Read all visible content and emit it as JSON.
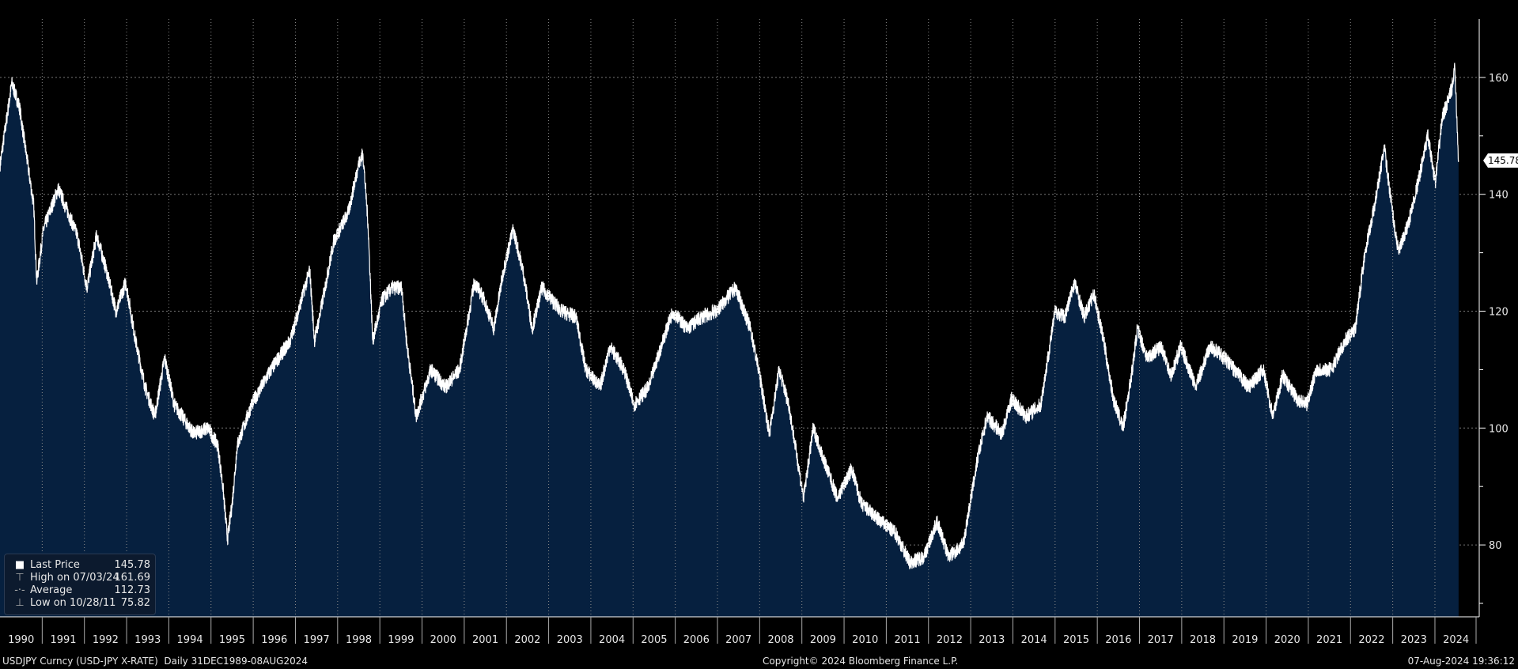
{
  "chart_data": {
    "type": "area",
    "title": "USDJPY Curncy (USD-JPY X-RATE)",
    "ylim": [
      67.7,
      170
    ],
    "xlim": [
      1990.0,
      2025.05
    ],
    "yticks": [
      "80",
      "100",
      "120",
      "140",
      "160"
    ],
    "ytick_values": [
      80,
      100,
      120,
      140,
      160
    ],
    "years": [
      "1990",
      "1991",
      "1992",
      "1993",
      "1994",
      "1995",
      "1996",
      "1997",
      "1998",
      "1999",
      "2000",
      "2001",
      "2002",
      "2003",
      "2004",
      "2005",
      "2006",
      "2007",
      "2008",
      "2009",
      "2010",
      "2011",
      "2012",
      "2013",
      "2014",
      "2015",
      "2016",
      "2017",
      "2018",
      "2019",
      "2020",
      "2021",
      "2022",
      "2023",
      "2024"
    ],
    "grid": true,
    "colors": {
      "fill": "#06203f",
      "line": "#ffffff",
      "background": "#000000"
    },
    "points": [
      [
        1990.0,
        145
      ],
      [
        1990.28,
        159
      ],
      [
        1990.46,
        155
      ],
      [
        1990.8,
        138
      ],
      [
        1990.87,
        125
      ],
      [
        1991.03,
        134
      ],
      [
        1991.38,
        141
      ],
      [
        1991.83,
        133
      ],
      [
        1992.06,
        124
      ],
      [
        1992.29,
        133
      ],
      [
        1992.52,
        127
      ],
      [
        1992.75,
        120
      ],
      [
        1992.98,
        125
      ],
      [
        1993.21,
        115
      ],
      [
        1993.44,
        107
      ],
      [
        1993.67,
        102
      ],
      [
        1993.9,
        112
      ],
      [
        1994.13,
        104
      ],
      [
        1994.59,
        99
      ],
      [
        1994.93,
        100
      ],
      [
        1995.16,
        97
      ],
      [
        1995.28,
        90
      ],
      [
        1995.39,
        81
      ],
      [
        1995.5,
        87
      ],
      [
        1995.62,
        97
      ],
      [
        1995.96,
        104
      ],
      [
        1996.42,
        110
      ],
      [
        1996.88,
        115
      ],
      [
        1997.22,
        124
      ],
      [
        1997.34,
        127
      ],
      [
        1997.45,
        115
      ],
      [
        1997.57,
        119
      ],
      [
        1997.91,
        132
      ],
      [
        1998.26,
        137
      ],
      [
        1998.49,
        145
      ],
      [
        1998.6,
        147
      ],
      [
        1998.72,
        135
      ],
      [
        1998.83,
        115
      ],
      [
        1999.06,
        122
      ],
      [
        1999.29,
        124
      ],
      [
        1999.52,
        124
      ],
      [
        1999.63,
        115
      ],
      [
        1999.86,
        102
      ],
      [
        2000.21,
        110
      ],
      [
        2000.55,
        107
      ],
      [
        2000.89,
        110
      ],
      [
        2001.24,
        125
      ],
      [
        2001.47,
        122
      ],
      [
        2001.7,
        117
      ],
      [
        2001.93,
        127
      ],
      [
        2002.16,
        134
      ],
      [
        2002.39,
        127
      ],
      [
        2002.61,
        117
      ],
      [
        2002.84,
        124
      ],
      [
        2003.3,
        120
      ],
      [
        2003.65,
        119
      ],
      [
        2003.88,
        110
      ],
      [
        2004.22,
        107
      ],
      [
        2004.45,
        114
      ],
      [
        2004.79,
        110
      ],
      [
        2005.02,
        104
      ],
      [
        2005.37,
        107
      ],
      [
        2005.71,
        115
      ],
      [
        2005.94,
        120
      ],
      [
        2006.28,
        117
      ],
      [
        2006.63,
        119
      ],
      [
        2006.97,
        120
      ],
      [
        2007.43,
        124
      ],
      [
        2007.78,
        117
      ],
      [
        2008.0,
        109
      ],
      [
        2008.23,
        99
      ],
      [
        2008.46,
        110
      ],
      [
        2008.69,
        104
      ],
      [
        2009.04,
        88
      ],
      [
        2009.27,
        100
      ],
      [
        2009.5,
        95
      ],
      [
        2009.84,
        88
      ],
      [
        2010.18,
        93
      ],
      [
        2010.41,
        87
      ],
      [
        2010.87,
        84
      ],
      [
        2011.22,
        82
      ],
      [
        2011.56,
        77
      ],
      [
        2011.9,
        78
      ],
      [
        2012.2,
        84
      ],
      [
        2012.48,
        78
      ],
      [
        2012.82,
        80
      ],
      [
        2013.17,
        95
      ],
      [
        2013.39,
        102
      ],
      [
        2013.74,
        99
      ],
      [
        2013.97,
        105
      ],
      [
        2014.31,
        102
      ],
      [
        2014.66,
        104
      ],
      [
        2015.0,
        120
      ],
      [
        2015.23,
        119
      ],
      [
        2015.46,
        125
      ],
      [
        2015.69,
        119
      ],
      [
        2015.92,
        123
      ],
      [
        2016.15,
        115
      ],
      [
        2016.38,
        105
      ],
      [
        2016.61,
        100
      ],
      [
        2016.83,
        110
      ],
      [
        2016.95,
        117
      ],
      [
        2017.18,
        112
      ],
      [
        2017.52,
        114
      ],
      [
        2017.75,
        109
      ],
      [
        2017.98,
        114
      ],
      [
        2018.33,
        107
      ],
      [
        2018.67,
        114
      ],
      [
        2019.01,
        112
      ],
      [
        2019.36,
        109
      ],
      [
        2019.59,
        107
      ],
      [
        2019.93,
        110
      ],
      [
        2020.16,
        102
      ],
      [
        2020.39,
        109
      ],
      [
        2020.73,
        105
      ],
      [
        2020.96,
        104
      ],
      [
        2021.19,
        110
      ],
      [
        2021.54,
        110
      ],
      [
        2021.88,
        115
      ],
      [
        2022.11,
        117
      ],
      [
        2022.34,
        130
      ],
      [
        2022.57,
        138
      ],
      [
        2022.8,
        148
      ],
      [
        2023.03,
        135
      ],
      [
        2023.14,
        130
      ],
      [
        2023.37,
        135
      ],
      [
        2023.6,
        142
      ],
      [
        2023.83,
        150
      ],
      [
        2024.01,
        142
      ],
      [
        2024.17,
        153
      ],
      [
        2024.4,
        158
      ],
      [
        2024.47,
        161.69
      ],
      [
        2024.56,
        145.78
      ]
    ],
    "last_price": "145.78"
  },
  "legend": {
    "items": [
      {
        "label": "Last Price",
        "value": "145.78"
      },
      {
        "label": "High on 07/03/24",
        "value": "161.69"
      },
      {
        "label": "Average",
        "value": "112.73"
      },
      {
        "label": "Low on 10/28/11",
        "value": "75.82"
      }
    ]
  },
  "footer": {
    "security": "USDJPY Curncy (USD-JPY X-RATE)  Daily 31DEC1989-08AUG2024",
    "copyright": "Copyright© 2024 Bloomberg Finance L.P.",
    "timestamp": "07-Aug-2024 19:36:12"
  }
}
